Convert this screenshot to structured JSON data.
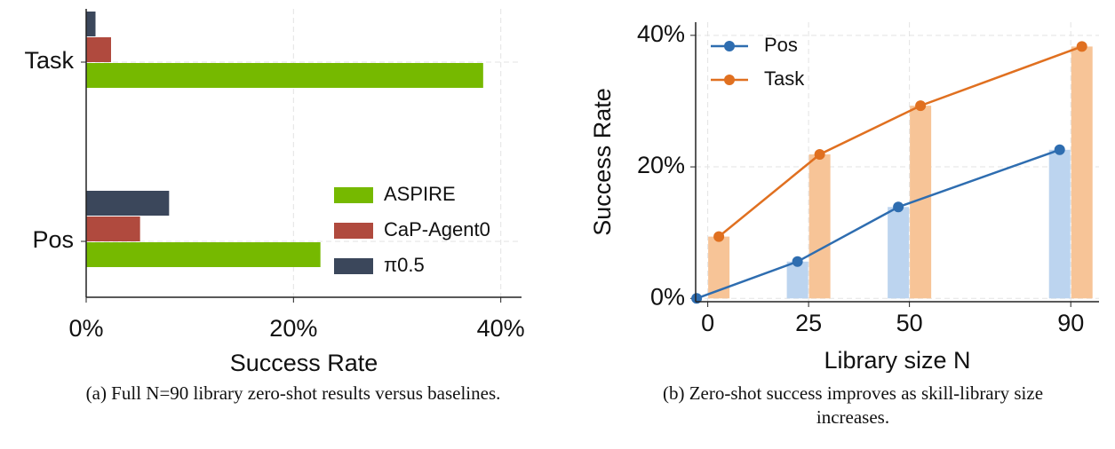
{
  "chart_data": [
    {
      "type": "barh",
      "xlabel": "Success Rate",
      "categories": [
        "Task",
        "Pos"
      ],
      "series": [
        {
          "name": "ASPIRE",
          "color": "#76b900",
          "values": [
            38.3,
            22.6
          ]
        },
        {
          "name": "CaP-Agent0",
          "color": "#b04a3e",
          "values": [
            2.4,
            5.2
          ]
        },
        {
          "name": "π0.5",
          "color": "#3b475b",
          "values": [
            0.9,
            8.0
          ]
        }
      ],
      "xlim": [
        0,
        42
      ],
      "xticks": [
        {
          "value": 0,
          "label": "0%"
        },
        {
          "value": 20,
          "label": "20%"
        },
        {
          "value": 40,
          "label": "40%"
        }
      ],
      "grid": true,
      "legend": "lower right"
    },
    {
      "type": "line",
      "xlabel": "Library size N",
      "ylabel": "Success Rate",
      "x": [
        0,
        25,
        50,
        90
      ],
      "series": [
        {
          "name": "Pos",
          "color": "#2e6db0",
          "bar_color": "#bcd4ef",
          "values": [
            0,
            5.6,
            13.9,
            22.6
          ]
        },
        {
          "name": "Task",
          "color": "#e07020",
          "bar_color": "#f7c497",
          "values": [
            9.4,
            21.9,
            29.3,
            38.3
          ]
        }
      ],
      "xlim": [
        -3,
        97
      ],
      "xticks": [
        0,
        25,
        50,
        90
      ],
      "ylim": [
        -0.5,
        42
      ],
      "yticks": [
        {
          "value": 0,
          "label": "0%"
        },
        {
          "value": 20,
          "label": "20%"
        },
        {
          "value": 40,
          "label": "40%"
        }
      ],
      "grid": true,
      "legend": "upper left"
    }
  ],
  "captions": [
    "(a) Full N=90 library zero-shot results versus baselines.",
    "(b) Zero-shot success improves as skill-library size increases."
  ]
}
